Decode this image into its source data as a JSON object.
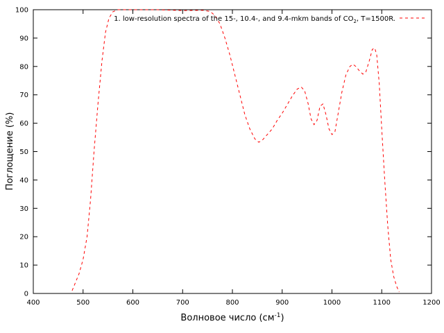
{
  "chart_data": {
    "type": "line",
    "title": "",
    "xlabel": "Волновое число (см",
    "xlabel_sup": "-1",
    "xlabel_end": ")",
    "ylabel": "Поглощение (%)",
    "xlim": [
      400,
      1200
    ],
    "ylim": [
      0,
      100
    ],
    "x_ticks": [
      400,
      500,
      600,
      700,
      800,
      900,
      1000,
      1100,
      1200
    ],
    "y_ticks": [
      0,
      10,
      20,
      30,
      40,
      50,
      60,
      70,
      80,
      90,
      100
    ],
    "grid": false,
    "legend_position": "top-right",
    "series": [
      {
        "name": "1. low-resolution spectra of the 15-, 10.4-, and 9.4-mkm bands of CO",
        "name_sub": "2",
        "name_end": ", T=1500R.",
        "color": "#ff0000",
        "line_style": "dashed",
        "points": [
          [
            478,
            1
          ],
          [
            485,
            4
          ],
          [
            492,
            7
          ],
          [
            500,
            12
          ],
          [
            508,
            20
          ],
          [
            515,
            33
          ],
          [
            522,
            50
          ],
          [
            530,
            67
          ],
          [
            538,
            82
          ],
          [
            545,
            92
          ],
          [
            552,
            97
          ],
          [
            560,
            99.3
          ],
          [
            570,
            100
          ],
          [
            600,
            100
          ],
          [
            650,
            100
          ],
          [
            700,
            99.7
          ],
          [
            740,
            99.8
          ],
          [
            755,
            99.4
          ],
          [
            765,
            98
          ],
          [
            775,
            95
          ],
          [
            785,
            90
          ],
          [
            795,
            84
          ],
          [
            805,
            77
          ],
          [
            815,
            70
          ],
          [
            825,
            63
          ],
          [
            835,
            58
          ],
          [
            845,
            54.5
          ],
          [
            853,
            53.3
          ],
          [
            860,
            54
          ],
          [
            870,
            56
          ],
          [
            880,
            58
          ],
          [
            890,
            61
          ],
          [
            900,
            63.5
          ],
          [
            910,
            66.5
          ],
          [
            920,
            69.5
          ],
          [
            930,
            72
          ],
          [
            938,
            72.8
          ],
          [
            945,
            71.5
          ],
          [
            952,
            67
          ],
          [
            958,
            61.5
          ],
          [
            964,
            59.5
          ],
          [
            970,
            61
          ],
          [
            976,
            66
          ],
          [
            982,
            66.8
          ],
          [
            988,
            63
          ],
          [
            994,
            58
          ],
          [
            1000,
            56
          ],
          [
            1006,
            57
          ],
          [
            1012,
            63
          ],
          [
            1020,
            71
          ],
          [
            1028,
            77
          ],
          [
            1036,
            80
          ],
          [
            1042,
            80.8
          ],
          [
            1048,
            80
          ],
          [
            1055,
            78.5
          ],
          [
            1062,
            77.3
          ],
          [
            1068,
            78
          ],
          [
            1075,
            82
          ],
          [
            1081,
            86
          ],
          [
            1086,
            86.5
          ],
          [
            1090,
            84
          ],
          [
            1095,
            74
          ],
          [
            1100,
            58
          ],
          [
            1106,
            40
          ],
          [
            1112,
            24
          ],
          [
            1118,
            12
          ],
          [
            1124,
            6
          ],
          [
            1130,
            2.5
          ],
          [
            1135,
            0.5
          ]
        ]
      }
    ]
  }
}
